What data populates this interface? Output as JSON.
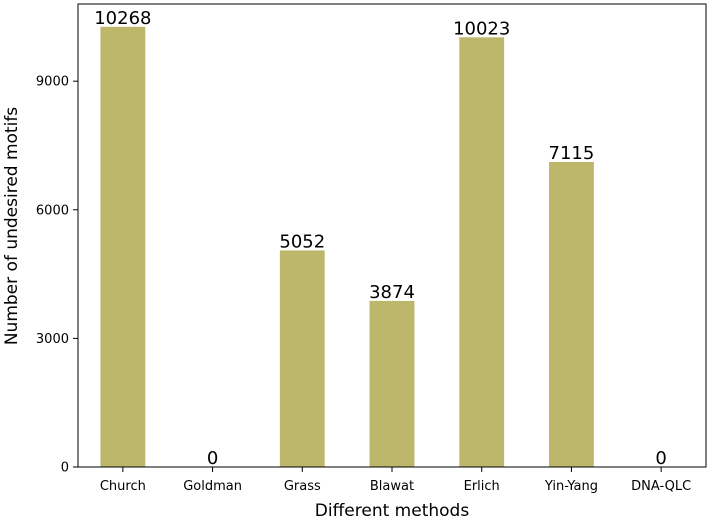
{
  "chart_data": {
    "type": "bar",
    "categories": [
      "Church",
      "Goldman",
      "Grass",
      "Blawat",
      "Erlich",
      "Yin-Yang",
      "DNA-QLC"
    ],
    "values": [
      10268,
      0,
      5052,
      3874,
      10023,
      7115,
      0
    ],
    "data_labels": [
      "10268",
      "0",
      "5052",
      "3874",
      "10023",
      "7115",
      "0"
    ],
    "title": "",
    "xlabel": "Different methods",
    "ylabel": "Number of undesired motifs",
    "yticks": [
      0,
      3000,
      6000,
      9000
    ],
    "ylim": [
      0,
      10800
    ],
    "bar_color": "#bdb76b",
    "grid": false,
    "legend": "none"
  }
}
